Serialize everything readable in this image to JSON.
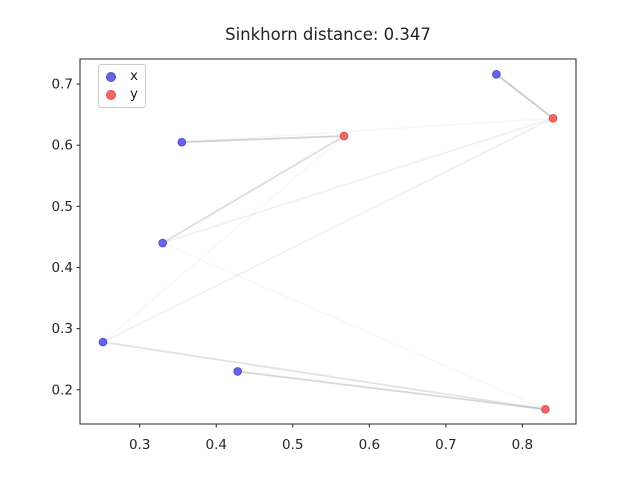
{
  "chart_data": {
    "type": "scatter",
    "title": "Sinkhorn distance: 0.347",
    "xlabel": "",
    "ylabel": "",
    "grid": false,
    "legend_position": "upper left",
    "xlim": [
      0.222,
      0.87
    ],
    "ylim": [
      0.144,
      0.741
    ],
    "x_ticks": [
      0.3,
      0.4,
      0.5,
      0.6,
      0.7,
      0.8
    ],
    "y_ticks": [
      0.2,
      0.3,
      0.4,
      0.5,
      0.6,
      0.7
    ],
    "series": [
      {
        "name": "x",
        "marker": "circle",
        "color": "#6565e6",
        "edge_color": "#4d4fd9",
        "points": [
          [
            0.355,
            0.605
          ],
          [
            0.33,
            0.44
          ],
          [
            0.252,
            0.278
          ],
          [
            0.428,
            0.23
          ],
          [
            0.766,
            0.716
          ]
        ]
      },
      {
        "name": "y",
        "marker": "circle",
        "color": "#f16868",
        "edge_color": "#e44f4f",
        "points": [
          [
            0.567,
            0.615
          ],
          [
            0.84,
            0.644
          ],
          [
            0.83,
            0.168
          ]
        ]
      }
    ],
    "transport_lines": {
      "color": "#8c8c8c",
      "pairs": [
        {
          "from": 0,
          "to": 0,
          "opacity": 0.38
        },
        {
          "from": 1,
          "to": 0,
          "opacity": 0.3
        },
        {
          "from": 4,
          "to": 1,
          "opacity": 0.45
        },
        {
          "from": 3,
          "to": 2,
          "opacity": 0.34
        },
        {
          "from": 2,
          "to": 2,
          "opacity": 0.24
        },
        {
          "from": 2,
          "to": 1,
          "opacity": 0.12
        },
        {
          "from": 1,
          "to": 1,
          "opacity": 0.12
        },
        {
          "from": 0,
          "to": 1,
          "opacity": 0.07
        },
        {
          "from": 2,
          "to": 0,
          "opacity": 0.05
        },
        {
          "from": 1,
          "to": 2,
          "opacity": 0.05
        }
      ]
    },
    "axis_color": "#262626",
    "tick_label_color": "#262626"
  }
}
